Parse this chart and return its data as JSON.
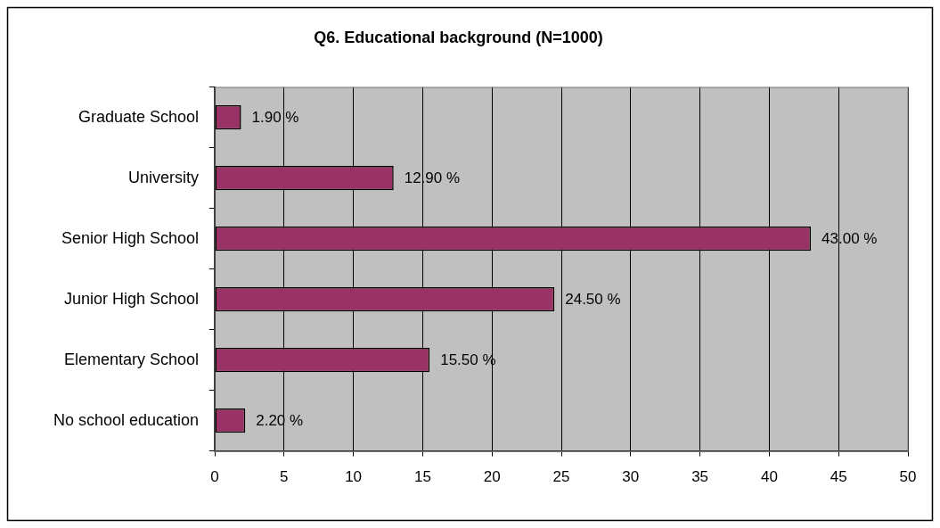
{
  "chart_data": {
    "type": "bar",
    "title": "Q6. Educational background (N=1000)",
    "orientation": "horizontal",
    "categories": [
      "Graduate School",
      "University",
      "Senior High School",
      "Junior High School",
      "Elementary School",
      "No school education"
    ],
    "values": [
      1.9,
      12.9,
      43,
      24.5,
      15.5,
      2.2
    ],
    "value_labels": [
      "1.90 %",
      "12.90 %",
      "43.00 %",
      "24.50 %",
      "15.50 %",
      "2.20 %"
    ],
    "color": "#993366",
    "xlim": [
      0,
      50
    ],
    "xticks": [
      0,
      5,
      10,
      15,
      20,
      25,
      30,
      35,
      40,
      45,
      50
    ],
    "grid": "x"
  }
}
